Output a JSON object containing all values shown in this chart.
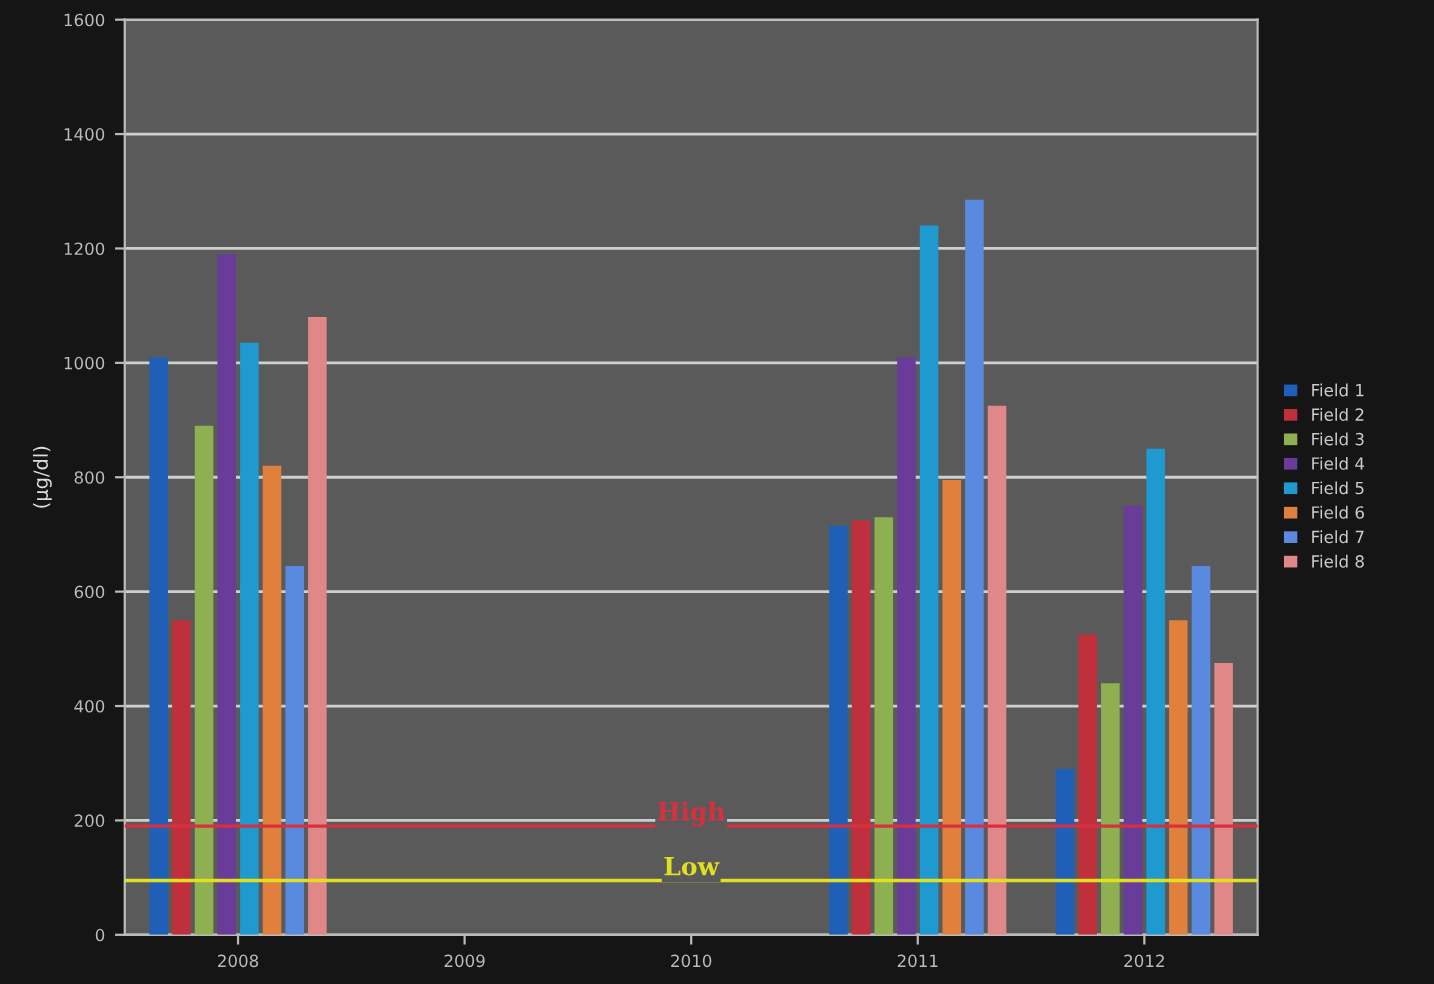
{
  "chart_data": {
    "type": "bar",
    "ylabel": "(µg/dl)",
    "categories": [
      "2008",
      "2009",
      "2010",
      "2011",
      "2012"
    ],
    "series": [
      {
        "name": "Field 1",
        "color": "#1f5fb8",
        "values": [
          1010,
          null,
          null,
          715,
          290
        ]
      },
      {
        "name": "Field 2",
        "color": "#c0303c",
        "values": [
          550,
          null,
          null,
          725,
          525
        ]
      },
      {
        "name": "Field 3",
        "color": "#8fb050",
        "values": [
          890,
          null,
          null,
          730,
          440
        ]
      },
      {
        "name": "Field 4",
        "color": "#6a3c9a",
        "values": [
          1190,
          null,
          null,
          1010,
          750
        ]
      },
      {
        "name": "Field 5",
        "color": "#1f9ad0",
        "values": [
          1035,
          null,
          null,
          1240,
          850
        ]
      },
      {
        "name": "Field 6",
        "color": "#e0803c",
        "values": [
          820,
          null,
          null,
          795,
          550
        ]
      },
      {
        "name": "Field 7",
        "color": "#5a8ae0",
        "values": [
          645,
          null,
          null,
          1285,
          645
        ]
      },
      {
        "name": "Field 8",
        "color": "#e08888",
        "values": [
          1080,
          null,
          null,
          925,
          475
        ]
      }
    ],
    "ylim": [
      0,
      1600
    ],
    "yticks": [
      0,
      200,
      400,
      600,
      800,
      1000,
      1200,
      1400,
      1600
    ],
    "ref_lines": [
      {
        "axis": "y",
        "value": 190,
        "label": "High",
        "color": "#d83040"
      },
      {
        "axis": "y",
        "value": 95,
        "label": "Low",
        "color": "#e0e020"
      }
    ],
    "grid": "y",
    "legend": "right"
  }
}
